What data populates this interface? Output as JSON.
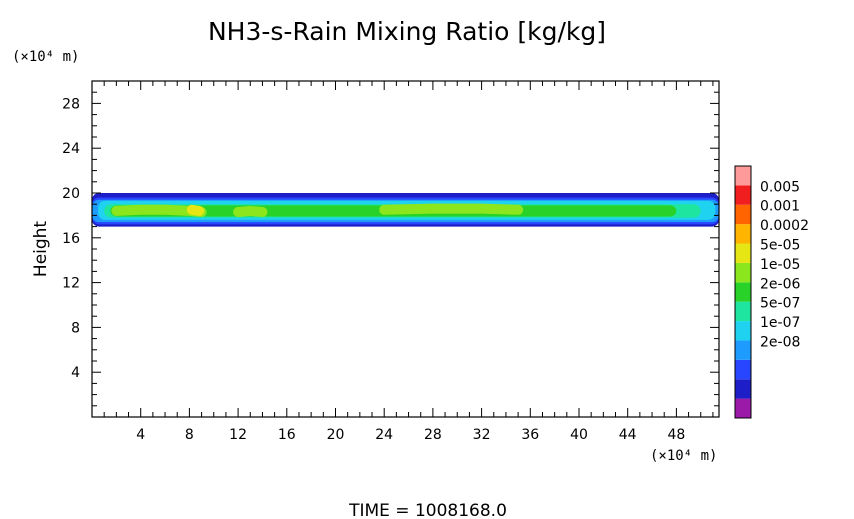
{
  "chart_data": {
    "type": "heatmap",
    "title": "NH3-s-Rain Mixing Ratio [kg/kg]",
    "ylabel": "Height",
    "xunit": "(×10⁴ m)",
    "yunit": "(×10⁴ m)",
    "xlim": [
      0,
      51.5
    ],
    "ylim": [
      0,
      30
    ],
    "xticks": [
      4,
      8,
      12,
      16,
      20,
      24,
      28,
      32,
      36,
      40,
      44,
      48
    ],
    "yticks": [
      4,
      8,
      12,
      16,
      20,
      24,
      28
    ],
    "grid": false,
    "time_label": "TIME = 1008168.0",
    "colorbar": {
      "labels": [
        "0.005",
        "0.001",
        "0.0002",
        "5e-05",
        "1e-05",
        "2e-06",
        "5e-07",
        "1e-07",
        "2e-08"
      ],
      "colors": [
        "#9c1aa8",
        "#1e1ec8",
        "#2846ff",
        "#1e9bff",
        "#1ed2f0",
        "#1ee6a0",
        "#28d228",
        "#8ce61e",
        "#e6e614",
        "#ffb400",
        "#ff6400",
        "#f01e1e",
        "#ff9a9a"
      ]
    },
    "layers": [
      {
        "level": 1,
        "value": "2e-08",
        "color": "#1e1ec8",
        "x0": 0,
        "x1": 51.5,
        "ylo": 17.0,
        "yhi": 20.0
      },
      {
        "level": 2,
        "value": "1e-07",
        "color": "#2846ff",
        "x0": 0,
        "x1": 51.5,
        "ylo": 17.2,
        "yhi": 19.6
      },
      {
        "level": 3,
        "value": "5e-07",
        "color": "#1e9bff",
        "x0": 0,
        "x1": 51.5,
        "ylo": 17.4,
        "yhi": 19.4
      },
      {
        "level": 4,
        "value": "2e-06",
        "color": "#1ed2f0",
        "x0": 0.5,
        "x1": 51.2,
        "ylo": 17.6,
        "yhi": 19.3
      },
      {
        "level": 5,
        "value": "1e-05",
        "color": "#1ee6a0",
        "x0": 1.0,
        "x1": 50.0,
        "ylo": 17.8,
        "yhi": 19.0
      },
      {
        "level": 6,
        "value": "5e-05",
        "color": "#28d228",
        "x0": 1.5,
        "x1": 48.0,
        "ylo": 17.9,
        "yhi": 18.9
      }
    ],
    "cores": [
      {
        "label": "5e-05",
        "color": "#8ce61e",
        "x": [
          2,
          4,
          6,
          8,
          9
        ],
        "y": [
          18.4,
          18.5,
          18.5,
          18.4,
          18.3
        ]
      },
      {
        "label": "5e-05",
        "color": "#8ce61e",
        "x": [
          12,
          13,
          14
        ],
        "y": [
          18.3,
          18.4,
          18.3
        ]
      },
      {
        "label": "5e-05",
        "color": "#8ce61e",
        "x": [
          24,
          28,
          32,
          35
        ],
        "y": [
          18.5,
          18.6,
          18.6,
          18.5
        ]
      },
      {
        "label": "5e-05",
        "color": "#e6e614",
        "x": [
          8.2,
          8.8
        ],
        "y": [
          18.5,
          18.4
        ]
      }
    ]
  }
}
